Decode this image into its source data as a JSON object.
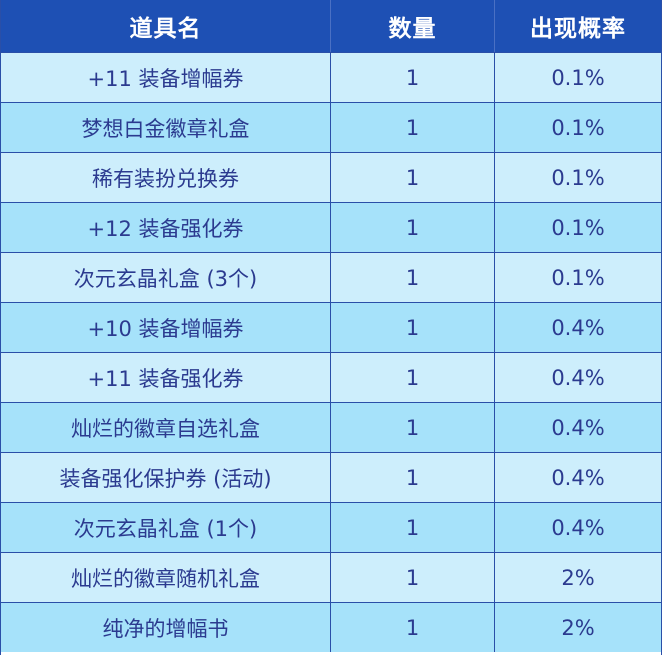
{
  "table": {
    "headers": [
      "道具名",
      "数量",
      "出现概率"
    ],
    "rows": [
      {
        "name": "+11 装备增幅券",
        "qty": "1",
        "rate": "0.1%"
      },
      {
        "name": "梦想白金徽章礼盒",
        "qty": "1",
        "rate": "0.1%"
      },
      {
        "name": "稀有装扮兑换券",
        "qty": "1",
        "rate": "0.1%"
      },
      {
        "name": "+12 装备强化券",
        "qty": "1",
        "rate": "0.1%"
      },
      {
        "name": "次元玄晶礼盒 (3个)",
        "qty": "1",
        "rate": "0.1%"
      },
      {
        "name": "+10 装备增幅券",
        "qty": "1",
        "rate": "0.4%"
      },
      {
        "name": "+11 装备强化券",
        "qty": "1",
        "rate": "0.4%"
      },
      {
        "name": "灿烂的徽章自选礼盒",
        "qty": "1",
        "rate": "0.4%"
      },
      {
        "name": "装备强化保护券 (活动)",
        "qty": "1",
        "rate": "0.4%"
      },
      {
        "name": "次元玄晶礼盒 (1个)",
        "qty": "1",
        "rate": "0.4%"
      },
      {
        "name": "灿烂的徽章随机礼盒",
        "qty": "1",
        "rate": "2%"
      },
      {
        "name": "纯净的增幅书",
        "qty": "1",
        "rate": "2%"
      }
    ]
  },
  "colors": {
    "header_bg": "#1e50b4",
    "row_light": "#cdeefc",
    "row_dark": "#a6e2fa",
    "text": "#2b3a8f",
    "border": "#2a4fa8"
  }
}
